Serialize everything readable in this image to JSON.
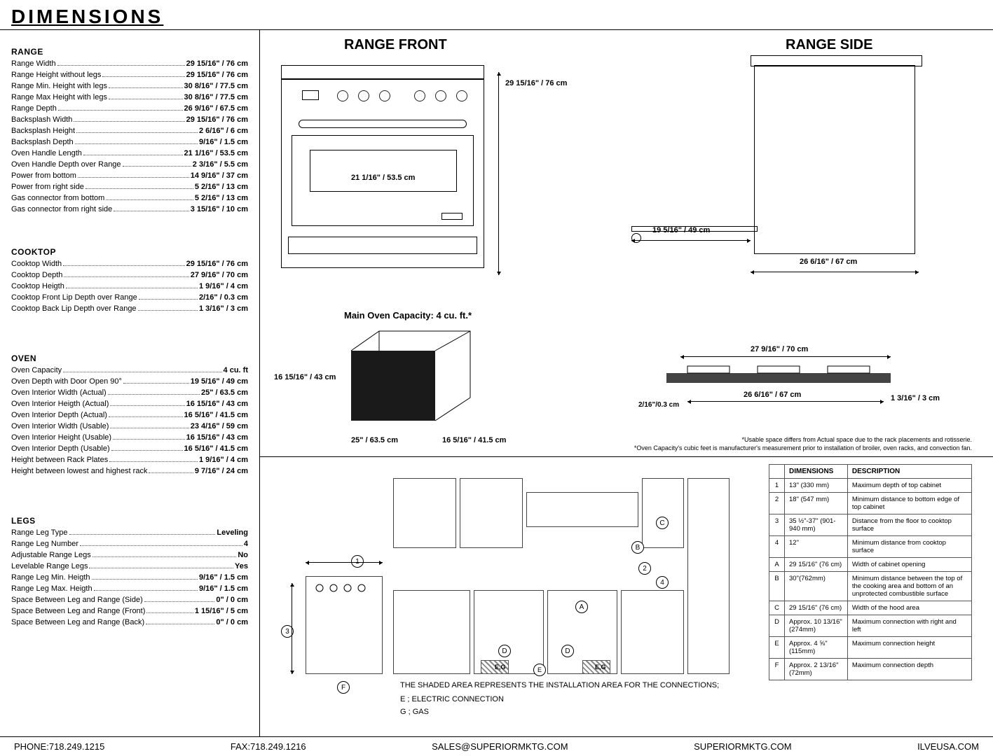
{
  "title": "DIMENSIONS",
  "sections": {
    "range": {
      "heading": "RANGE",
      "rows": [
        {
          "l": "Range Width",
          "v": "29 15/16\" / 76 cm"
        },
        {
          "l": "Range Height without legs",
          "v": "29 15/16\" / 76 cm"
        },
        {
          "l": "Range Min. Height with legs",
          "v": "30 8/16\" / 77.5 cm"
        },
        {
          "l": "Range Max Height with legs",
          "v": "30 8/16\" / 77.5 cm"
        },
        {
          "l": "Range Depth",
          "v": "26 9/16\" / 67.5 cm"
        },
        {
          "l": "Backsplash Width",
          "v": "29 15/16\" / 76 cm"
        },
        {
          "l": "Backsplash Height",
          "v": "2 6/16\" / 6 cm"
        },
        {
          "l": "Backsplash Depth",
          "v": "9/16\" / 1.5 cm"
        },
        {
          "l": "Oven Handle Length",
          "v": "21 1/16\" / 53.5 cm"
        },
        {
          "l": "Oven Handle Depth over Range",
          "v": "2 3/16\" / 5.5 cm"
        },
        {
          "l": "Power from bottom",
          "v": "14 9/16\" / 37 cm"
        },
        {
          "l": "Power from right side",
          "v": "5 2/16\" / 13 cm"
        },
        {
          "l": "Gas connector from bottom",
          "v": "5 2/16\" / 13 cm"
        },
        {
          "l": "Gas connector from right side",
          "v": "3 15/16\" / 10 cm"
        }
      ]
    },
    "cooktop": {
      "heading": "COOKTOP",
      "rows": [
        {
          "l": "Cooktop Width",
          "v": "29 15/16\" / 76 cm"
        },
        {
          "l": "Cooktop Depth",
          "v": "27 9/16\" / 70 cm"
        },
        {
          "l": "Cooktop Heigth",
          "v": "1 9/16\" / 4 cm"
        },
        {
          "l": "Cooktop Front Lip Depth over Range",
          "v": "2/16\" / 0.3 cm"
        },
        {
          "l": "Cooktop Back Lip Depth over Range",
          "v": "1 3/16\" / 3 cm"
        }
      ]
    },
    "oven": {
      "heading": "OVEN",
      "rows": [
        {
          "l": "Oven Capacity",
          "v": "4 cu. ft"
        },
        {
          "l": "Oven Depth with Door Open 90°",
          "v": "19 5/16\" / 49 cm"
        },
        {
          "l": "Oven Interior Width (Actual)",
          "v": "25\" / 63.5 cm"
        },
        {
          "l": "Oven Interior Heigth (Actual)",
          "v": "16 15/16\" / 43 cm"
        },
        {
          "l": "Oven Interior Depth (Actual)",
          "v": "16 5/16\" / 41.5 cm"
        },
        {
          "l": "Oven Interior Width (Usable)",
          "v": "23 4/16\" / 59 cm"
        },
        {
          "l": "Oven Interior Height (Usable)",
          "v": "16 15/16\" / 43 cm"
        },
        {
          "l": "Oven Interior Depth (Usable)",
          "v": "16 5/16\" / 41.5 cm"
        },
        {
          "l": "Height between Rack Plates",
          "v": "1 9/16\" / 4 cm"
        },
        {
          "l": "Height between lowest and highest rack",
          "v": "9 7/16\" / 24 cm"
        }
      ]
    },
    "legs": {
      "heading": "LEGS",
      "rows": [
        {
          "l": "Range Leg Type",
          "v": "Leveling"
        },
        {
          "l": "Range Leg Number",
          "v": "4"
        },
        {
          "l": "Adjustable Range Legs",
          "v": "No"
        },
        {
          "l": "Levelable Range Legs",
          "v": "Yes"
        },
        {
          "l": "Range Leg Min. Heigth",
          "v": "9/16\" / 1.5 cm"
        },
        {
          "l": "Range Leg Max. Heigth",
          "v": "9/16\" / 1.5 cm"
        },
        {
          "l": "Space Between Leg and Range (Side)",
          "v": "0\" / 0 cm"
        },
        {
          "l": "Space Between Leg and Range (Front)",
          "v": "1 15/16\" / 5 cm"
        },
        {
          "l": "Space Between Leg and Range (Back)",
          "v": "0\" / 0 cm"
        }
      ]
    }
  },
  "diagrams": {
    "front_title": "RANGE FRONT",
    "side_title": "RANGE SIDE",
    "front_height": "29 15/16\" / 76 cm",
    "front_handle": "21 1/16\" / 53.5 cm",
    "side_depth": "26 6/16\" / 67 cm",
    "side_door": "19 5/16\" / 49 cm",
    "oven_cap_title": "Main Oven Capacity: 4 cu. ft.*",
    "oven_h": "16 15/16\" / 43 cm",
    "oven_w": "25\" / 63.5 cm",
    "oven_d": "16 5/16\" / 41.5 cm",
    "ct_width": "27 9/16\" / 70 cm",
    "ct_under": "26 6/16\" / 67 cm",
    "ct_front": "2/16\"/0.3 cm",
    "ct_back": "1 3/16\" / 3 cm",
    "note1": "*Usable space differs from Actual space due to the rack placements and rotisserie.",
    "note2": "*Oven Capacity's cubic feet is manufacturer's measurement prior to installation of broiler, oven racks, and convection fan."
  },
  "install": {
    "note_main": "THE SHADED AREA REPRESENTS THE INSTALLATION AREA FOR THE CONNECTIONS;",
    "note_e": "E ; ELECTRIC CONNECTION",
    "note_g": "G ; GAS"
  },
  "dim_table": {
    "head1": "DIMENSIONS",
    "head2": "DESCRIPTION",
    "rows": [
      {
        "n": "1",
        "d": "13\" (330 mm)",
        "t": "Maximum depth of top cabinet"
      },
      {
        "n": "2",
        "d": "18\" (547 mm)",
        "t": "Minimum distance to bottom edge of top cabinet"
      },
      {
        "n": "3",
        "d": "35 ½\"-37\" (901-940 mm)",
        "t": "Distance from the floor to cooktop surface"
      },
      {
        "n": "4",
        "d": "12\"",
        "t": "Minimum distance from cooktop surface"
      },
      {
        "n": "A",
        "d": "29 15/16\" (76 cm)",
        "t": "Width of cabinet opening"
      },
      {
        "n": "B",
        "d": "30\"(762mm)",
        "t": "Minimum distance between the top of the cooking area and bottom of an unprotected combustible surface"
      },
      {
        "n": "C",
        "d": "29 15/16\" (76 cm)",
        "t": "Width of the hood area"
      },
      {
        "n": "D",
        "d": "Approx. 10 13/16\" (274mm)",
        "t": "Maximum connection with right and left"
      },
      {
        "n": "E",
        "d": "Approx. 4 ⅝\" (115mm)",
        "t": "Maximum connection height"
      },
      {
        "n": "F",
        "d": "Approx. 2 13/16\" (72mm)",
        "t": "Maximum connection depth"
      }
    ]
  },
  "footer": {
    "phone": "PHONE:718.249.1215",
    "fax": "FAX:718.249.1216",
    "email": "SALES@SUPERIORMKTG.COM",
    "site1": "SUPERIORMKTG.COM",
    "site2": "ILVEUSA.COM"
  }
}
